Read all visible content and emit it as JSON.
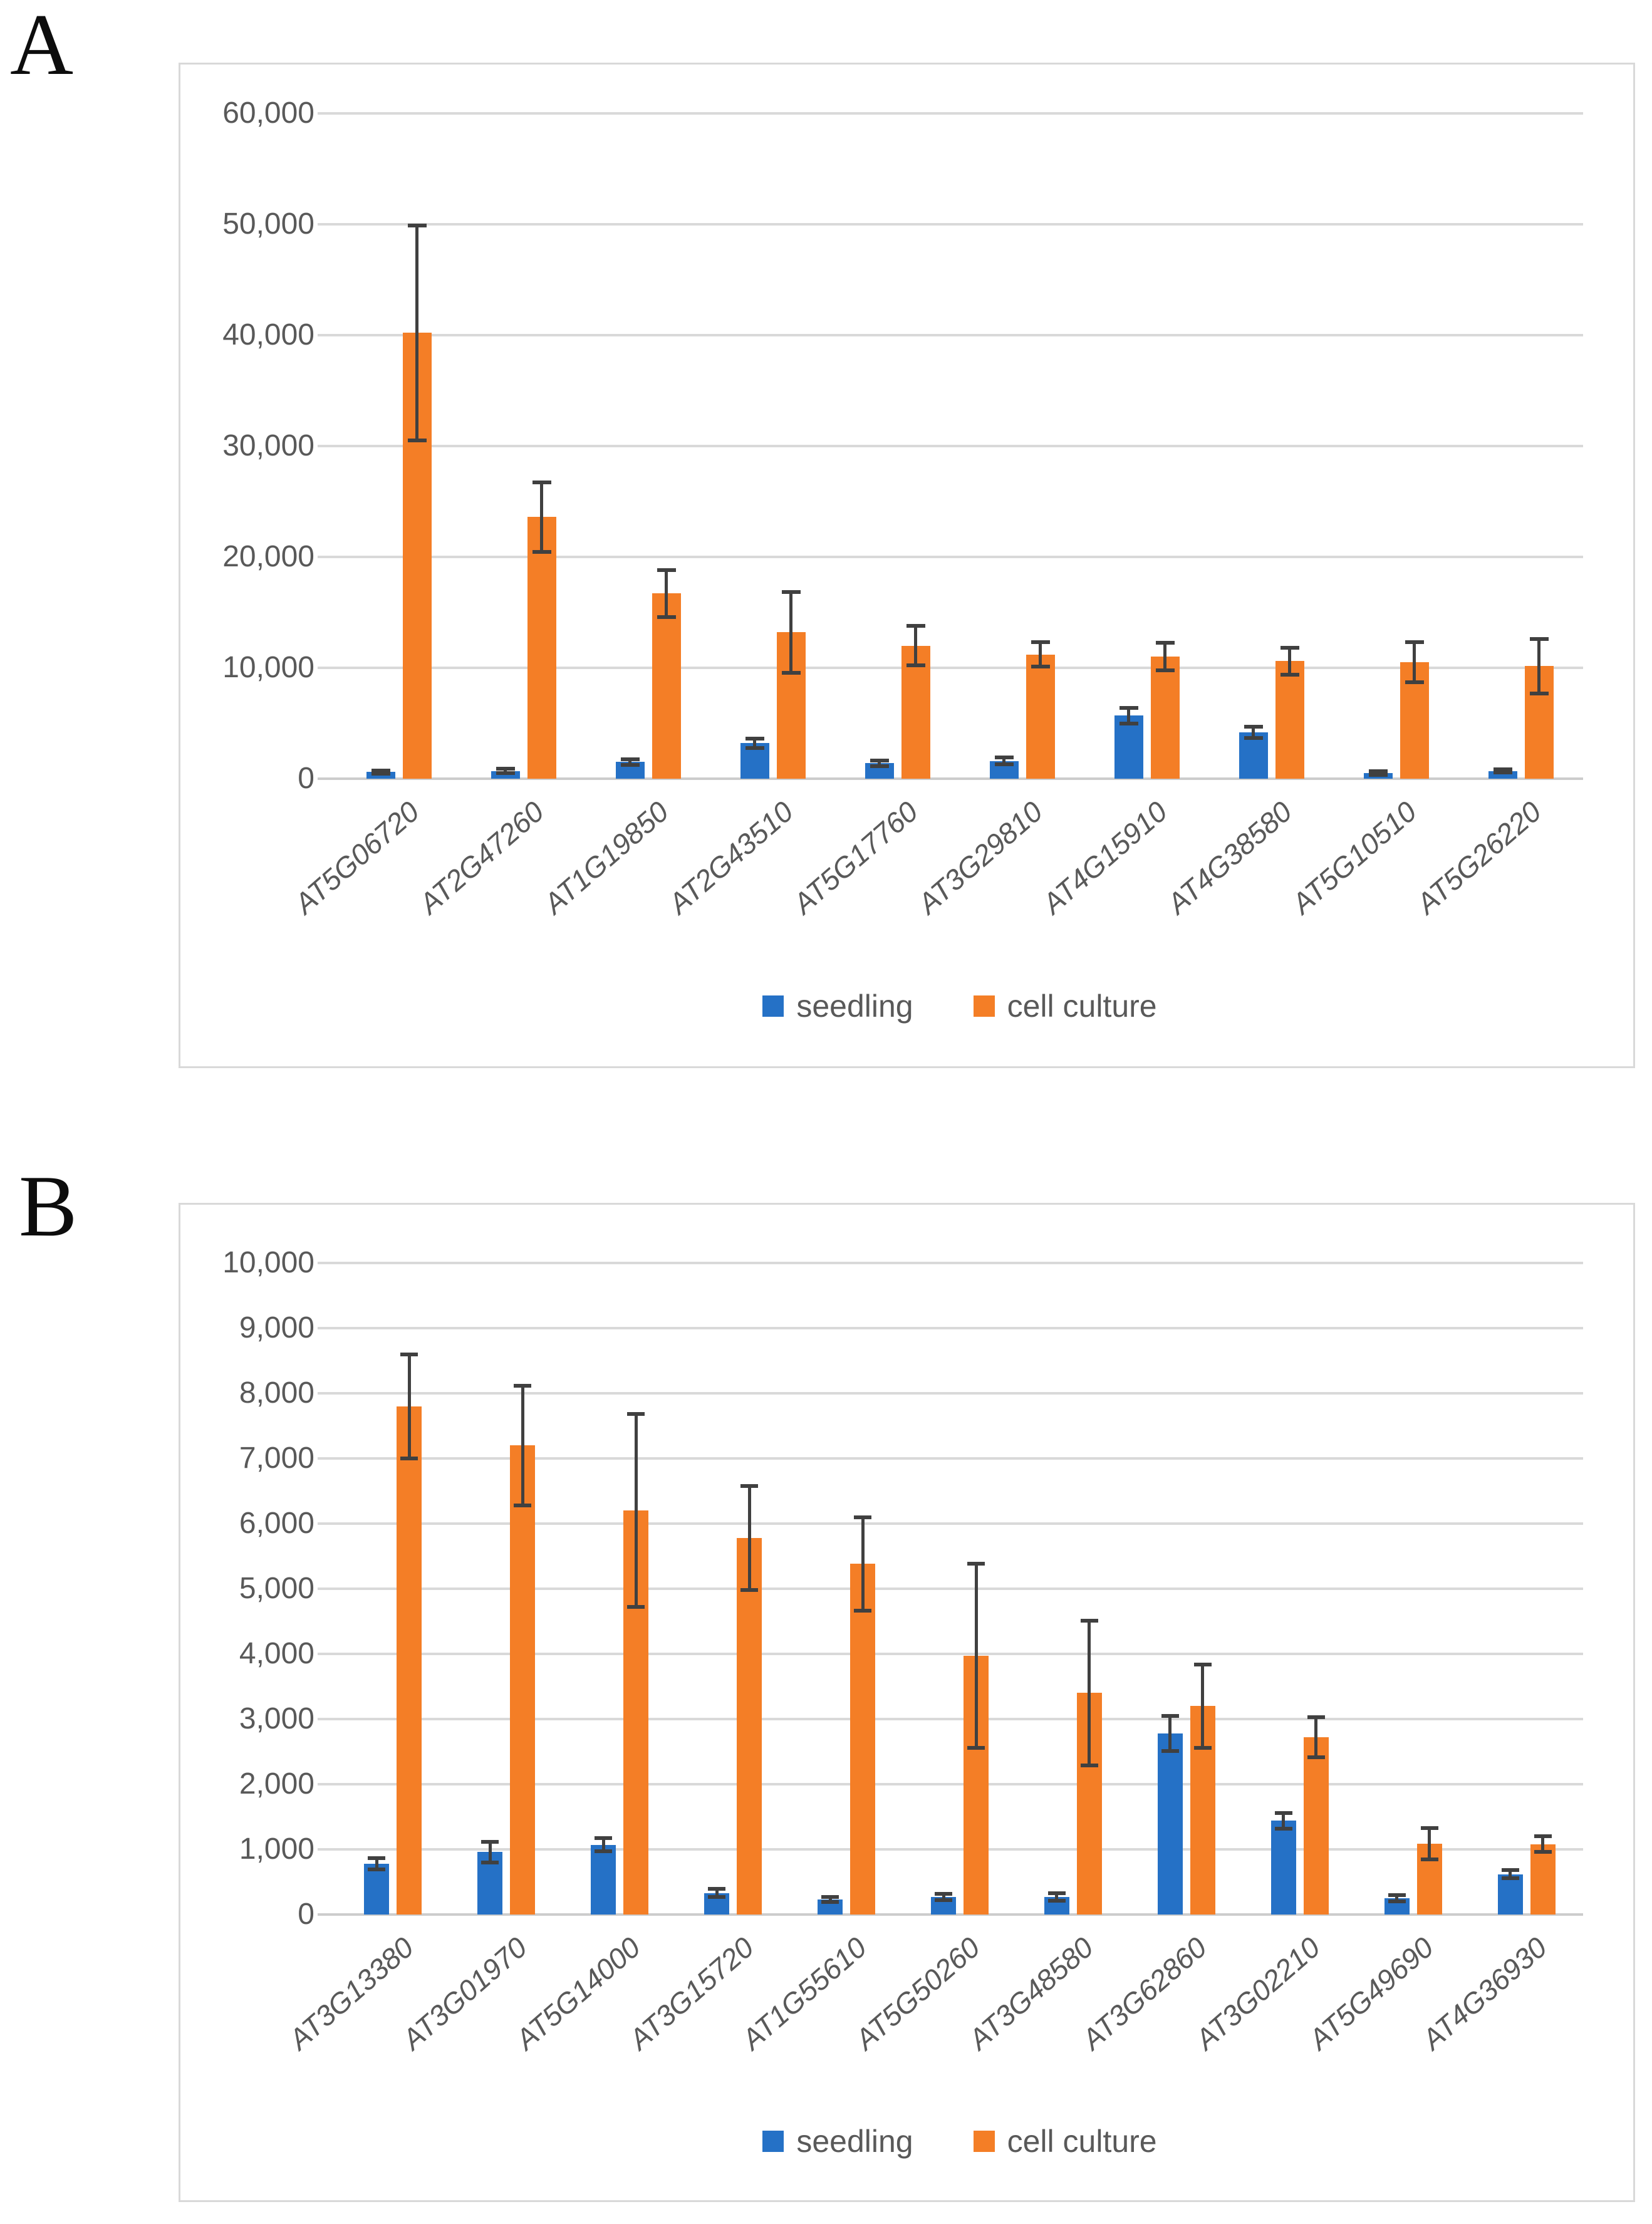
{
  "figure": {
    "panels": [
      {
        "label": "A"
      },
      {
        "label": "B"
      }
    ]
  },
  "colors": {
    "seedling": "#2571C6",
    "cell_culture": "#F47E26",
    "gridline": "#D9D9D9",
    "axis_line": "#CCCCCC",
    "error_bar": "#404040",
    "tick_text": "#595959",
    "chart_border": "#D9D9D9"
  },
  "chart_data": [
    {
      "type": "bar",
      "panel": "A",
      "title": "",
      "xlabel": "",
      "ylabel": "",
      "grid": true,
      "legend_position": "bottom",
      "ylim": [
        0,
        60000
      ],
      "ytick_step": 10000,
      "ytick_labels": [
        "0",
        "10,000",
        "20,000",
        "30,000",
        "40,000",
        "50,000",
        "60,000"
      ],
      "categories": [
        "AT5G06720",
        "AT2G47260",
        "AT1G19850",
        "AT2G43510",
        "AT5G17760",
        "AT3G29810",
        "AT4G15910",
        "AT4G38580",
        "AT5G10510",
        "AT5G26220"
      ],
      "series": [
        {
          "name": "seedling",
          "color_key": "seedling",
          "values": [
            600,
            700,
            1500,
            3200,
            1400,
            1600,
            5700,
            4200,
            500,
            700
          ],
          "errors": [
            120,
            180,
            250,
            420,
            250,
            300,
            700,
            500,
            150,
            160
          ]
        },
        {
          "name": "cell culture",
          "color_key": "cell_culture",
          "values": [
            40200,
            23600,
            16700,
            13200,
            12000,
            11200,
            11000,
            10600,
            10500,
            10150
          ],
          "errors": [
            9700,
            3150,
            2100,
            3650,
            1800,
            1100,
            1250,
            1200,
            1800,
            2450
          ]
        }
      ]
    },
    {
      "type": "bar",
      "panel": "B",
      "title": "",
      "xlabel": "",
      "ylabel": "",
      "grid": true,
      "legend_position": "bottom",
      "ylim": [
        0,
        10000
      ],
      "ytick_step": 1000,
      "ytick_labels": [
        "0",
        "1,000",
        "2,000",
        "3,000",
        "4,000",
        "5,000",
        "6,000",
        "7,000",
        "8,000",
        "9,000",
        "10,000"
      ],
      "categories": [
        "AT3G13380",
        "AT3G01970",
        "AT5G14000",
        "AT3G15720",
        "AT1G55610",
        "AT5G50260",
        "AT3G48580",
        "AT3G62860",
        "AT3G02210",
        "AT5G49690",
        "AT4G36930"
      ],
      "series": [
        {
          "name": "seedling",
          "color_key": "seedling",
          "values": [
            780,
            960,
            1070,
            330,
            230,
            270,
            270,
            2780,
            1440,
            250,
            620
          ],
          "errors": [
            90,
            160,
            100,
            60,
            40,
            50,
            60,
            270,
            120,
            50,
            60
          ]
        },
        {
          "name": "cell culture",
          "color_key": "cell_culture",
          "values": [
            7800,
            7200,
            6200,
            5780,
            5380,
            3970,
            3400,
            3200,
            2720,
            1090,
            1080
          ],
          "errors": [
            800,
            920,
            1480,
            800,
            720,
            1410,
            1110,
            640,
            310,
            240,
            120
          ]
        }
      ]
    }
  ]
}
